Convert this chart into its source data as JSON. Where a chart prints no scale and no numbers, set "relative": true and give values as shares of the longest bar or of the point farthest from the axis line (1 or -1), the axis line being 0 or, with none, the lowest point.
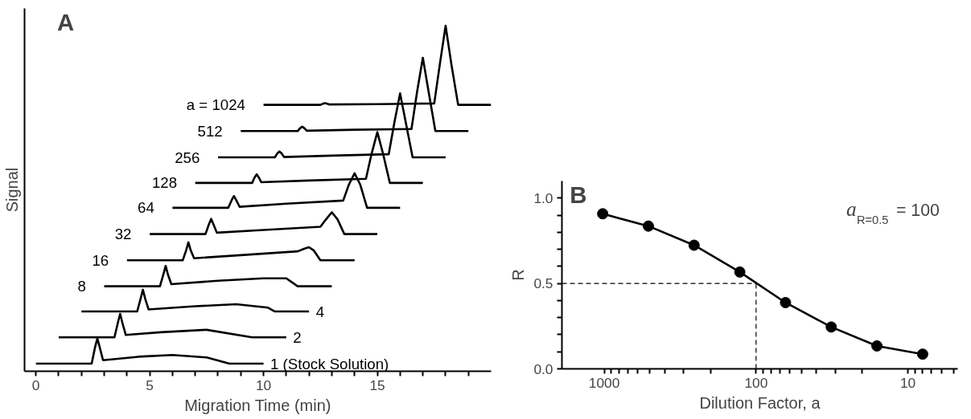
{
  "chart_data": [
    {
      "type": "line",
      "title": "A",
      "xlabel": "Migration Time (min)",
      "ylabel": "Signal",
      "relative": true,
      "tick_labels": "x",
      "grid": false,
      "marker": "none",
      "line_style": "solid",
      "xlim": [
        -0.5,
        20
      ],
      "xticks": [
        0,
        {
          "value": 1,
          "label": null
        },
        {
          "value": 2,
          "label": null
        },
        {
          "value": 3,
          "label": null
        },
        {
          "value": 4,
          "label": null
        },
        5,
        {
          "value": 6,
          "label": null
        },
        {
          "value": 7,
          "label": null
        },
        {
          "value": 8,
          "label": null
        },
        {
          "value": 9,
          "label": null
        },
        10,
        {
          "value": 11,
          "label": null
        },
        {
          "value": 12,
          "label": null
        },
        {
          "value": 13,
          "label": null
        },
        {
          "value": 14,
          "label": null
        },
        15,
        {
          "value": 16,
          "label": null
        },
        {
          "value": 17,
          "label": null
        },
        {
          "value": 18,
          "label": null
        },
        {
          "value": 19,
          "label": null
        }
      ],
      "series": [
        {
          "name": "1  (Stock Solution)",
          "color": "#000000",
          "x": [
            0,
            2.45,
            2.6,
            2.7,
            2.8,
            2.95,
            4.5,
            6.0,
            7.5,
            8.5,
            10
          ],
          "values": [
            0.022,
            0.022,
            0.07,
            0.095,
            0.07,
            0.032,
            0.042,
            0.047,
            0.04,
            0.022,
            0.022
          ]
        },
        {
          "name": "2",
          "color": "#000000",
          "x": [
            1,
            3.45,
            3.6,
            3.7,
            3.8,
            3.95,
            5.5,
            7.5,
            9.5,
            11
          ],
          "values": [
            0.098,
            0.098,
            0.14,
            0.166,
            0.14,
            0.105,
            0.113,
            0.12,
            0.098,
            0.098
          ]
        },
        {
          "name": "4",
          "color": "#000000",
          "x": [
            2,
            4.45,
            4.6,
            4.7,
            4.8,
            4.95,
            7.0,
            8.8,
            10.2,
            10.5,
            12
          ],
          "values": [
            0.173,
            0.173,
            0.21,
            0.236,
            0.21,
            0.179,
            0.188,
            0.194,
            0.184,
            0.173,
            0.173
          ]
        },
        {
          "name": "8",
          "color": "#000000",
          "x": [
            3,
            5.45,
            5.6,
            5.7,
            5.8,
            5.95,
            8.0,
            10.0,
            11.0,
            11.5,
            13
          ],
          "values": [
            0.246,
            0.246,
            0.28,
            0.305,
            0.28,
            0.252,
            0.262,
            0.269,
            0.269,
            0.246,
            0.246
          ]
        },
        {
          "name": "16",
          "color": "#000000",
          "x": [
            4,
            6.45,
            6.6,
            6.7,
            6.8,
            6.95,
            9.0,
            11.5,
            11.8,
            12.0,
            12.2,
            12.5,
            14
          ],
          "values": [
            0.321,
            0.321,
            0.35,
            0.373,
            0.35,
            0.327,
            0.336,
            0.347,
            0.355,
            0.359,
            0.35,
            0.321,
            0.321
          ]
        },
        {
          "name": "32",
          "color": "#000000",
          "x": [
            5,
            7.45,
            7.6,
            7.7,
            7.8,
            7.95,
            10.0,
            12.5,
            12.75,
            13.0,
            13.25,
            13.55,
            15
          ],
          "values": [
            0.397,
            0.397,
            0.425,
            0.441,
            0.425,
            0.401,
            0.409,
            0.418,
            0.44,
            0.46,
            0.44,
            0.397,
            0.397
          ]
        },
        {
          "name": "64",
          "color": "#000000",
          "x": [
            6,
            8.45,
            8.6,
            8.7,
            8.8,
            8.95,
            11.0,
            13.5,
            13.75,
            14.0,
            14.25,
            14.55,
            16
          ],
          "values": [
            0.473,
            0.473,
            0.495,
            0.507,
            0.495,
            0.476,
            0.485,
            0.494,
            0.54,
            0.573,
            0.54,
            0.473,
            0.473
          ]
        },
        {
          "name": "128",
          "color": "#000000",
          "x": [
            7,
            9.5,
            9.6,
            9.7,
            9.8,
            9.9,
            12.0,
            14.5,
            14.75,
            15.0,
            15.25,
            15.55,
            17
          ],
          "values": [
            0.545,
            0.545,
            0.56,
            0.57,
            0.56,
            0.547,
            0.552,
            0.557,
            0.63,
            0.692,
            0.63,
            0.545,
            0.545
          ]
        },
        {
          "name": "256",
          "color": "#000000",
          "x": [
            8,
            10.5,
            10.6,
            10.7,
            10.8,
            10.9,
            13.0,
            15.5,
            15.75,
            16.0,
            16.25,
            16.55,
            18
          ],
          "values": [
            0.619,
            0.619,
            0.63,
            0.636,
            0.63,
            0.62,
            0.624,
            0.628,
            0.72,
            0.804,
            0.72,
            0.619,
            0.619
          ]
        },
        {
          "name": "512",
          "color": "#000000",
          "x": [
            9,
            11.5,
            11.6,
            11.7,
            11.8,
            11.9,
            14.0,
            16.5,
            16.75,
            17.0,
            17.25,
            17.55,
            19
          ],
          "values": [
            0.695,
            0.695,
            0.703,
            0.708,
            0.703,
            0.696,
            0.699,
            0.701,
            0.81,
            0.907,
            0.81,
            0.695,
            0.695
          ]
        },
        {
          "name": "a = 1024",
          "color": "#000000",
          "x": [
            10,
            12.5,
            12.6,
            12.7,
            12.8,
            12.9,
            15.0,
            17.5,
            17.75,
            18.0,
            18.25,
            18.55,
            20
          ],
          "values": [
            0.771,
            0.771,
            0.774,
            0.776,
            0.774,
            0.772,
            0.773,
            0.775,
            0.89,
            1.0,
            0.89,
            0.771,
            0.771
          ]
        }
      ]
    },
    {
      "type": "line",
      "title": "B",
      "xlabel": "Dilution Factor, a",
      "ylabel": "R",
      "log": "x",
      "grid": false,
      "marker": "circle",
      "line_style": "solid",
      "xlim": [
        1900,
        4.7
      ],
      "ylim": [
        0,
        1.1
      ],
      "xticks": [
        1000,
        {
          "value": 900,
          "label": null
        },
        {
          "value": 800,
          "label": null
        },
        {
          "value": 700,
          "label": null
        },
        {
          "value": 600,
          "label": null
        },
        {
          "value": 500,
          "label": null
        },
        {
          "value": 400,
          "label": null
        },
        {
          "value": 300,
          "label": null
        },
        {
          "value": 200,
          "label": null
        },
        100,
        {
          "value": 90,
          "label": null
        },
        {
          "value": 80,
          "label": null
        },
        {
          "value": 70,
          "label": null
        },
        {
          "value": 60,
          "label": null
        },
        {
          "value": 50,
          "label": null
        },
        {
          "value": 40,
          "label": null
        },
        {
          "value": 30,
          "label": null
        },
        {
          "value": 20,
          "label": null
        },
        10,
        {
          "value": 9,
          "label": null
        },
        {
          "value": 8,
          "label": null
        },
        {
          "value": 7,
          "label": null
        },
        {
          "value": 6,
          "label": null
        },
        {
          "value": 5,
          "label": null
        }
      ],
      "yticks": [
        {
          "value": 0,
          "label": "0.0"
        },
        {
          "value": 0.1,
          "label": null
        },
        {
          "value": 0.2,
          "label": null
        },
        {
          "value": 0.3,
          "label": null
        },
        {
          "value": 0.4,
          "label": null
        },
        {
          "value": 0.5,
          "label": "0.5"
        },
        {
          "value": 0.6,
          "label": null
        },
        {
          "value": 0.7,
          "label": null
        },
        {
          "value": 0.8,
          "label": null
        },
        {
          "value": 0.9,
          "label": null
        },
        {
          "value": 1.0,
          "label": "1.0"
        }
      ],
      "x": [
        1024,
        512,
        256,
        128,
        64,
        32,
        16,
        8
      ],
      "series": [
        {
          "color": "#000000",
          "values": [
            0.908,
            0.836,
            0.724,
            0.567,
            0.388,
            0.245,
            0.134,
            0.086
          ]
        }
      ],
      "ref_lines": [
        {
          "axis": "y",
          "value": 0.5,
          "line_style": "dashed",
          "color": "#000000"
        },
        {
          "axis": "x",
          "value": 100,
          "line_style": "dashed",
          "color": "#000000"
        }
      ],
      "annotations": [
        "a$_{R=0.5}$ = 100"
      ]
    }
  ]
}
